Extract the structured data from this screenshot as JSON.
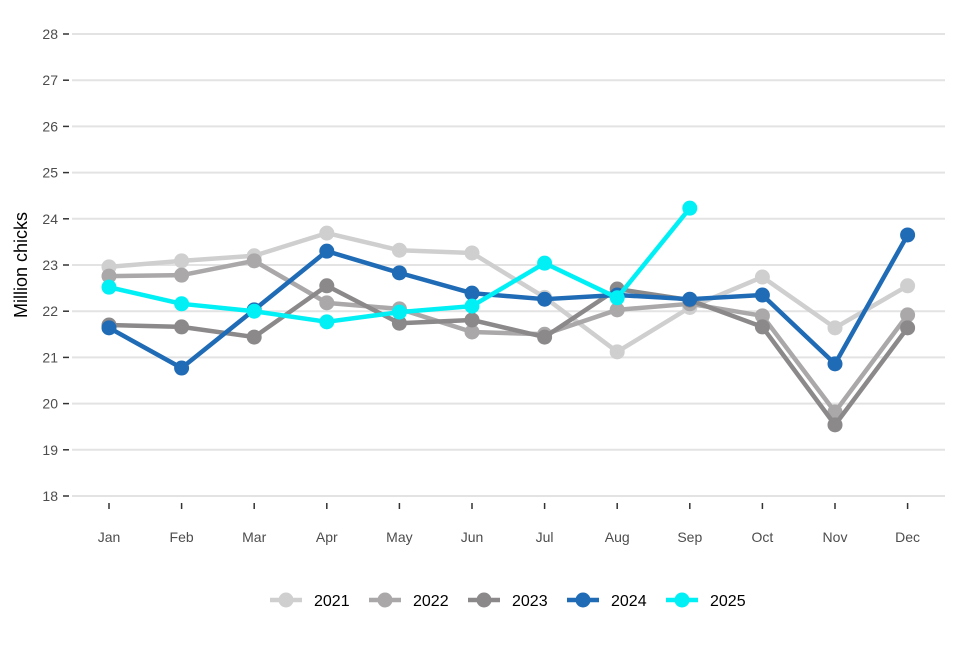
{
  "chart_data": {
    "type": "line",
    "title": "",
    "xlabel": "",
    "ylabel": "Million chicks",
    "ylim": [
      18,
      28
    ],
    "yticks": [
      18,
      19,
      20,
      21,
      22,
      23,
      24,
      25,
      26,
      27,
      28
    ],
    "grid": true,
    "legend_position": "bottom",
    "categories": [
      "Jan",
      "Feb",
      "Mar",
      "Apr",
      "May",
      "Jun",
      "Jul",
      "Aug",
      "Sep",
      "Oct",
      "Nov",
      "Dec"
    ],
    "series": [
      {
        "name": "2021",
        "color": "#cfcfcf",
        "values": [
          22.96,
          23.09,
          23.2,
          23.69,
          23.32,
          23.26,
          22.3,
          21.12,
          22.08,
          22.74,
          21.64,
          22.55
        ]
      },
      {
        "name": "2022",
        "color": "#aaa8a8",
        "values": [
          22.76,
          22.78,
          23.09,
          22.18,
          22.05,
          21.55,
          21.5,
          22.03,
          22.16,
          21.9,
          19.82,
          21.92
        ]
      },
      {
        "name": "2023",
        "color": "#8b8989",
        "values": [
          21.7,
          21.66,
          21.44,
          22.55,
          21.74,
          21.81,
          21.44,
          22.48,
          22.24,
          21.66,
          19.54,
          21.64
        ]
      },
      {
        "name": "2024",
        "color": "#1f6bb5",
        "values": [
          21.64,
          20.77,
          22.03,
          23.3,
          22.83,
          22.39,
          22.26,
          22.35,
          22.26,
          22.35,
          20.86,
          23.65
        ]
      },
      {
        "name": "2025",
        "color": "#00f0f5",
        "values": [
          22.52,
          22.16,
          22.0,
          21.77,
          21.98,
          22.11,
          23.04,
          22.29,
          24.23,
          null,
          null,
          null
        ]
      }
    ]
  }
}
